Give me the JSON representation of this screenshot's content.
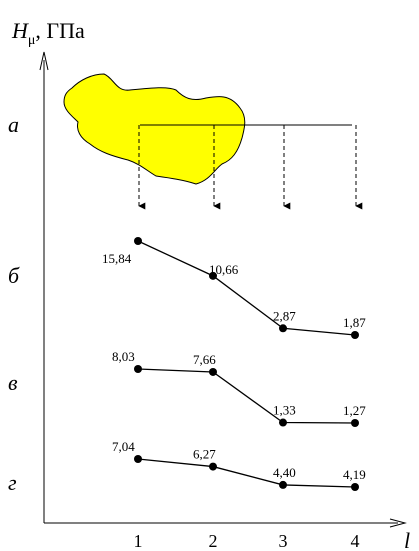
{
  "chart_data": {
    "type": "line",
    "y_title": {
      "var": "H",
      "sub": "μ",
      "unit": ", ГПа"
    },
    "xlabel": "l",
    "categories": [
      "1",
      "2",
      "3",
      "4"
    ],
    "series": [
      {
        "letter": "б",
        "values": [
          15.84,
          10.66,
          2.87,
          1.87
        ],
        "labels": [
          "15,84",
          "10,66",
          "2,87",
          "1,87"
        ]
      },
      {
        "letter": "в",
        "values": [
          8.03,
          7.66,
          1.33,
          1.27
        ],
        "labels": [
          "8,03",
          "7,66",
          "1,33",
          "1,27"
        ]
      },
      {
        "letter": "г",
        "values": [
          7.04,
          6.27,
          4.4,
          4.19
        ],
        "labels": [
          "7,04",
          "6,27",
          "4,40",
          "4,19"
        ]
      }
    ],
    "schematic": {
      "letter": "а",
      "blob_color": "#ffff00",
      "arrow_count": 4
    },
    "grid": false,
    "legend": "none"
  }
}
